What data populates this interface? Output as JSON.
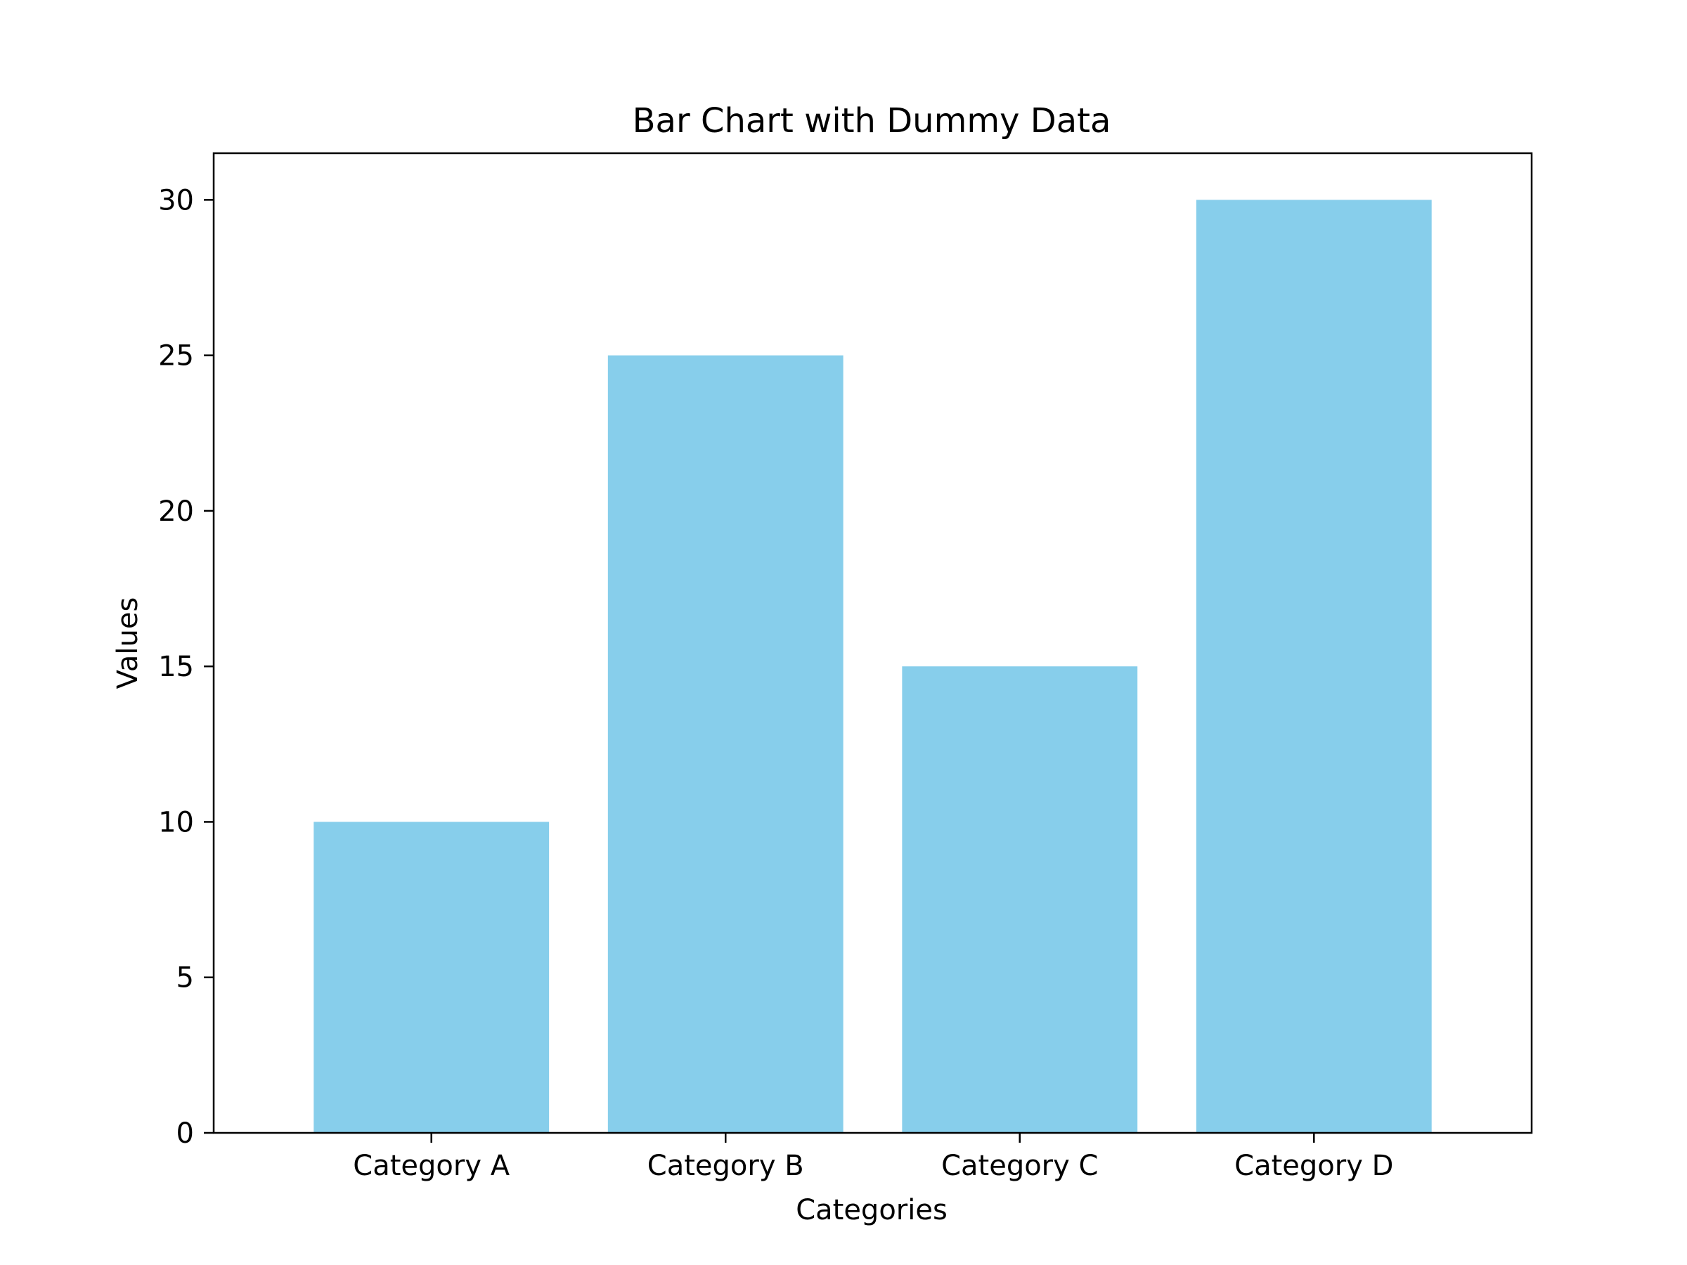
{
  "chart_data": {
    "type": "bar",
    "title": "Bar Chart with Dummy Data",
    "xlabel": "Categories",
    "ylabel": "Values",
    "categories": [
      "Category A",
      "Category B",
      "Category C",
      "Category D"
    ],
    "values": [
      10,
      25,
      15,
      30
    ],
    "ylim": [
      0,
      31.5
    ],
    "yticks": [
      0,
      5,
      10,
      15,
      20,
      25,
      30
    ],
    "bar_color": "#87ceeb",
    "grid": false,
    "legend": "none"
  }
}
